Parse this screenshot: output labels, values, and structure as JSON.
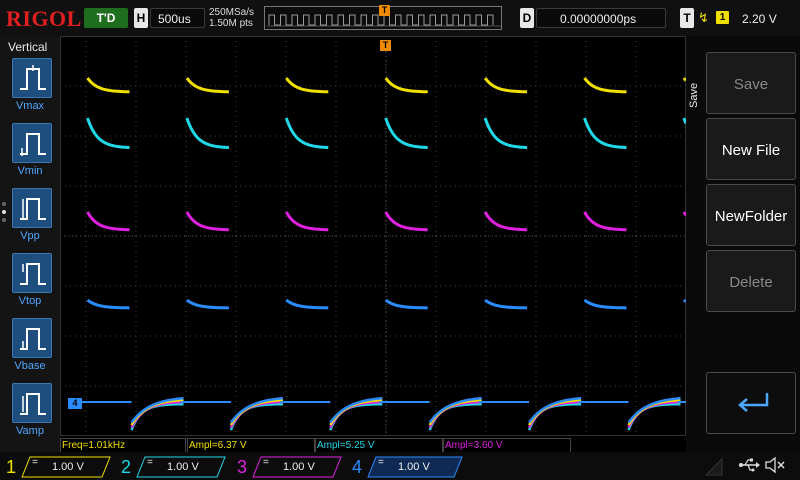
{
  "header": {
    "brand": "RIGOL",
    "run_state": "T'D",
    "timebase_letter": "H",
    "timebase": "500us",
    "sample_rate": "250MSa/s",
    "mem_depth": "1.50M pts",
    "trigger_marker": "T",
    "delay_letter": "D",
    "delay": "0.00000000ps",
    "trigger_letter": "T",
    "trigger_slope_icon": "rising-edge-icon",
    "trigger_source": "1",
    "trigger_level": "2.20 V"
  },
  "left_panel": {
    "title": "Vertical",
    "items": [
      {
        "label": "Vmax",
        "icon": "vmax-icon"
      },
      {
        "label": "Vmin",
        "icon": "vmin-icon"
      },
      {
        "label": "Vpp",
        "icon": "vpp-icon"
      },
      {
        "label": "Vtop",
        "icon": "vtop-icon"
      },
      {
        "label": "Vbase",
        "icon": "vbase-icon"
      },
      {
        "label": "Vamp",
        "icon": "vamp-icon"
      }
    ]
  },
  "markers": {
    "trigger_top": "T",
    "trigger_level": "T",
    "ch4_offset": "4"
  },
  "readouts": [
    {
      "text": "Freq=1.01kHz",
      "color": "#f0e000"
    },
    {
      "text": "Ampl=6.37 V",
      "color": "#f0e000"
    },
    {
      "text": "Ampl=5.25 V",
      "color": "#1fd8e8"
    },
    {
      "text": "Ampl=3.60 V",
      "color": "#e020e0"
    }
  ],
  "right_menu": {
    "title": "Save",
    "buttons": [
      {
        "label": "Save",
        "enabled": false
      },
      {
        "label": "New File",
        "enabled": true
      },
      {
        "label": "NewFolder",
        "enabled": true
      },
      {
        "label": "Delete",
        "enabled": false
      }
    ],
    "back_icon": "return-arrow-icon"
  },
  "channels": [
    {
      "num": "1",
      "coupling": "=",
      "scale": "1.00 V",
      "color": "#f0e000"
    },
    {
      "num": "2",
      "coupling": "=",
      "scale": "1.00 V",
      "color": "#1fd8e8"
    },
    {
      "num": "3",
      "coupling": "=",
      "scale": "1.00 V",
      "color": "#e020e0"
    },
    {
      "num": "4",
      "coupling": "=",
      "scale": "1.00 V",
      "color": "#2a8cff"
    }
  ],
  "status_icons": [
    "usb-icon",
    "speaker-mute-icon"
  ]
}
